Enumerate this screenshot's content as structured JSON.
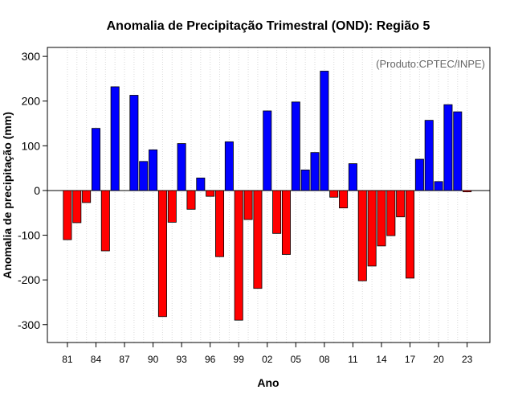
{
  "chart_data": {
    "type": "bar",
    "title": "Anomalia de Precipitação Trimestral (OND): Região 5",
    "xlabel": "Ano",
    "ylabel": "Anomalia de precipitação (mm)",
    "annotation": "(Produto:CPTEC/INPE)",
    "ylim": [
      -340,
      320
    ],
    "yticks": [
      -300,
      -200,
      -100,
      0,
      100,
      200,
      300
    ],
    "ytick_labels": [
      "-300",
      "-200",
      "-100",
      "0",
      "100",
      "200",
      "300"
    ],
    "xtick_labels": [
      "81",
      "84",
      "87",
      "90",
      "93",
      "96",
      "99",
      "02",
      "05",
      "08",
      "11",
      "14",
      "17",
      "20",
      "23"
    ],
    "xtick_years": [
      1981,
      1984,
      1987,
      1990,
      1993,
      1996,
      1999,
      2002,
      2005,
      2008,
      2011,
      2014,
      2017,
      2020,
      2023
    ],
    "grid": true,
    "positive_color": "#0000ff",
    "negative_color": "#ff0000",
    "years": [
      1981,
      1982,
      1983,
      1984,
      1985,
      1986,
      1987,
      1988,
      1989,
      1990,
      1991,
      1992,
      1993,
      1994,
      1995,
      1996,
      1997,
      1998,
      1999,
      2000,
      2001,
      2002,
      2003,
      2004,
      2005,
      2006,
      2007,
      2008,
      2009,
      2010,
      2011,
      2012,
      2013,
      2014,
      2015,
      2016,
      2017,
      2018,
      2019,
      2020,
      2021,
      2022,
      2023
    ],
    "values": [
      -110,
      -72,
      -27,
      139,
      -135,
      232,
      0,
      213,
      65,
      91,
      -282,
      -71,
      105,
      -42,
      28,
      -13,
      -148,
      109,
      -290,
      -65,
      -219,
      178,
      -96,
      -143,
      198,
      46,
      85,
      267,
      -15,
      -39,
      60,
      -202,
      -169,
      -124,
      -101,
      -59,
      -196,
      70,
      157,
      20,
      192,
      176,
      -3
    ]
  }
}
